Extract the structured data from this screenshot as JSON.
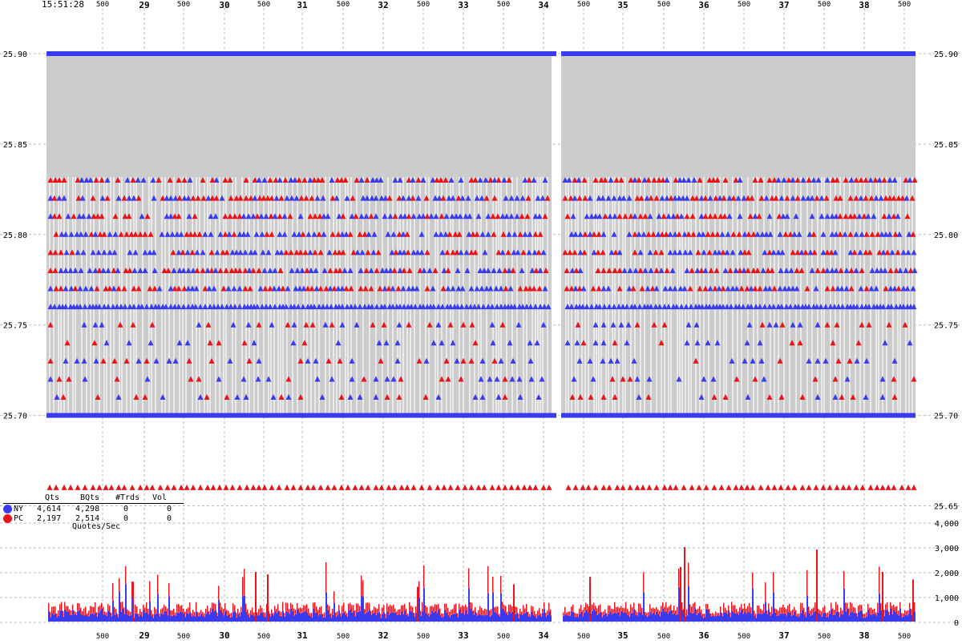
{
  "colors": {
    "ny": "#3b3bee",
    "pc": "#e8141a",
    "band": "#cccccc",
    "grid": "#b8b8b8",
    "background": "#ffffff"
  },
  "timestamp": "15:51:28",
  "legend": {
    "columns": [
      "Qts",
      "BQts",
      "#Trds",
      "Vol"
    ],
    "rows": [
      {
        "name": "NY",
        "color": "#3b3bee",
        "qts": "4,614",
        "bqts": "4,298",
        "trds": "0",
        "vol": "0"
      },
      {
        "name": "PC",
        "color": "#e8141a",
        "qts": "2,197",
        "bqts": "2,514",
        "trds": "0",
        "vol": "0"
      }
    ],
    "rate_label": "Quotes/Sec"
  },
  "chart_data": [
    {
      "type": "scatter",
      "panel": "price",
      "x_major_ticks": [
        "29",
        "30",
        "31",
        "32",
        "33",
        "34",
        "35",
        "36",
        "37",
        "38"
      ],
      "x_minor_label": "500",
      "y_ticks": [
        "25.90",
        "25.85",
        "25.80",
        "25.75",
        "25.70",
        "25.65"
      ],
      "ylim": [
        25.65,
        25.91
      ],
      "series": [
        {
          "name": "NY",
          "color": "#3b3bee",
          "bid": 25.7,
          "ask": 25.9,
          "levels": [
            25.71,
            25.72,
            25.73,
            25.74,
            25.75,
            25.76,
            25.77,
            25.78,
            25.79,
            25.8,
            25.81,
            25.82,
            25.83
          ]
        },
        {
          "name": "PC",
          "color": "#e8141a",
          "bid": 25.66,
          "levels": [
            25.71,
            25.72,
            25.73,
            25.74,
            25.75,
            25.77,
            25.78,
            25.79,
            25.8,
            25.81,
            25.82,
            25.83
          ]
        }
      ],
      "gap_between": [
        "34",
        "35"
      ]
    },
    {
      "type": "bar",
      "panel": "quotes_per_second",
      "y_ticks": [
        "4,000",
        "3,000",
        "2,000",
        "1,000",
        "0"
      ],
      "ylim": [
        0,
        4000
      ],
      "typical_value": 500,
      "peaks": [
        1600,
        2000,
        1900,
        1400,
        1500,
        1800,
        2200,
        3000,
        2900,
        2000,
        1700
      ],
      "series": [
        {
          "name": "NY",
          "color": "#3b3bee"
        },
        {
          "name": "PC",
          "color": "#e8141a"
        }
      ]
    }
  ]
}
